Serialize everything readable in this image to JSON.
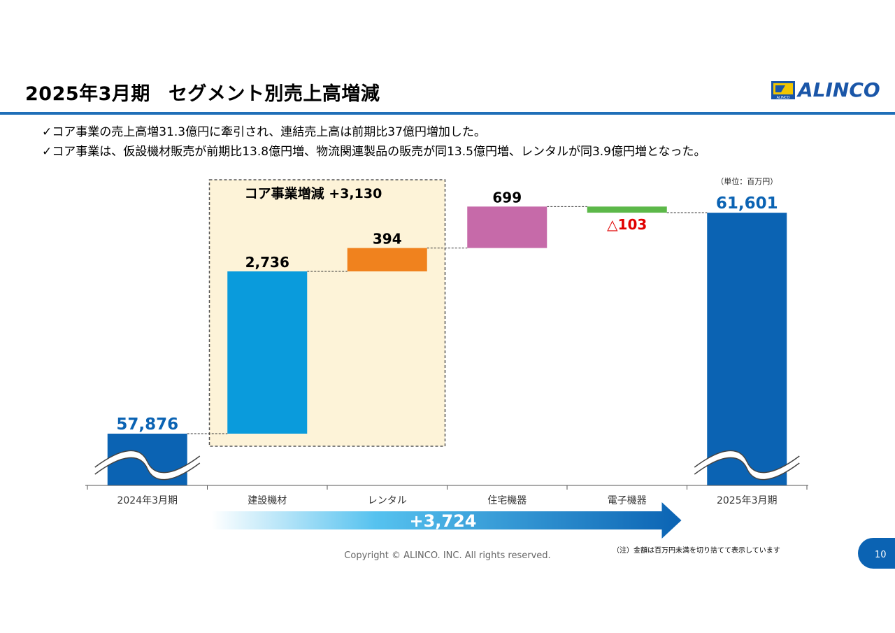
{
  "header": {
    "title_period": "2025年3月期",
    "title_main": "セグメント別売上高増減",
    "logo_text": "ALINCO",
    "logo_sub": "ALINCO"
  },
  "bullets": [
    "✓コア事業の売上高増31.3億円に牽引され、連結売上高は前期比37億円増加した。",
    "✓コア事業は、仮設機材販売が前期比13.8億円増、物流関連製品の販売が同13.5億円増、レンタルが同3.9億円増となった。"
  ],
  "chart_data": {
    "type": "bar",
    "subtype": "waterfall",
    "unit_label": "（単位：百万円）",
    "categories": [
      "2024年3月期",
      "建設機材",
      "レンタル",
      "住宅機器",
      "電子機器",
      "2025年3月期"
    ],
    "values": [
      57876,
      2736,
      394,
      699,
      -103,
      61601
    ],
    "value_labels": [
      "57,876",
      "2,736",
      "394",
      "699",
      "△103",
      "61,601"
    ],
    "bar_kinds": [
      "total",
      "delta",
      "delta",
      "delta",
      "delta",
      "total"
    ],
    "colors": [
      "#0b63b3",
      "#0a9bdc",
      "#f0821e",
      "#c66aa9",
      "#5cb849",
      "#0b63b3"
    ],
    "label_colors": [
      "#0b63b3",
      "#000000",
      "#000000",
      "#000000",
      "#e00000",
      "#0b63b3"
    ],
    "axis_break": true,
    "core_group": {
      "label": "コア事業増減 +3,130",
      "categories": [
        "建設機材",
        "レンタル"
      ],
      "fill": "#fdf3d8"
    },
    "total_change": {
      "label": "+3,724",
      "color": "#0b63b3"
    }
  },
  "footer": {
    "copyright": "Copyright © ALINCO. INC. All rights reserved.",
    "note": "（注）金額は百万円未満を切り捨てて表示しています",
    "page_number": "10"
  }
}
